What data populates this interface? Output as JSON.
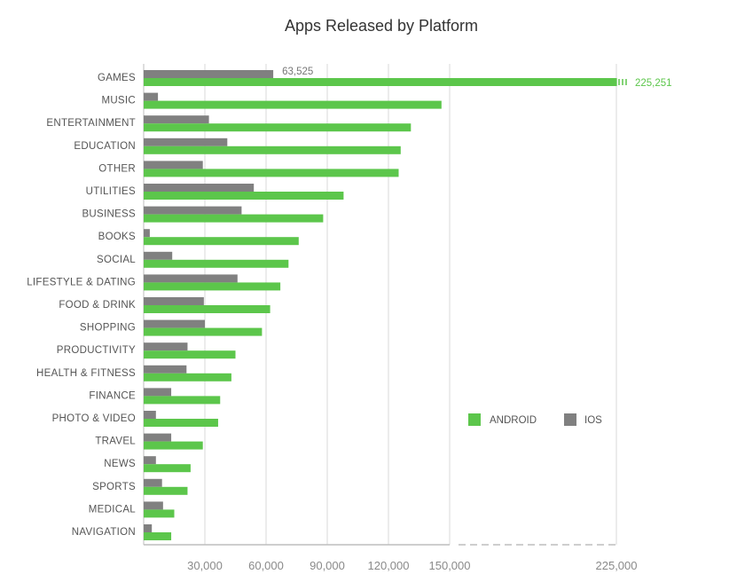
{
  "chart_data": {
    "type": "bar",
    "orientation": "horizontal",
    "title": "Apps Released by Platform",
    "xlabel": "",
    "ylabel": "",
    "categories": [
      "GAMES",
      "MUSIC",
      "ENTERTAINMENT",
      "EDUCATION",
      "OTHER",
      "UTILITIES",
      "BUSINESS",
      "BOOKS",
      "SOCIAL",
      "LIFESTYLE & DATING",
      "FOOD & DRINK",
      "SHOPPING",
      "PRODUCTIVITY",
      "HEALTH & FITNESS",
      "FINANCE",
      "PHOTO & VIDEO",
      "TRAVEL",
      "NEWS",
      "SPORTS",
      "MEDICAL",
      "NAVIGATION"
    ],
    "series": [
      {
        "name": "IOS",
        "color": "#808080",
        "values": [
          63525,
          7000,
          32000,
          41000,
          29000,
          54000,
          48000,
          3000,
          14000,
          46000,
          29500,
          30000,
          21500,
          21000,
          13500,
          6000,
          13500,
          6000,
          9000,
          9500,
          4000
        ]
      },
      {
        "name": "ANDROID",
        "color": "#5cc64b",
        "values": [
          225251,
          146000,
          131000,
          126000,
          125000,
          98000,
          88000,
          76000,
          71000,
          67000,
          62000,
          58000,
          45000,
          43000,
          37500,
          36500,
          29000,
          23000,
          21500,
          15000,
          13500
        ]
      }
    ],
    "xlim": [
      0,
      225000
    ],
    "x_ticks": [
      "30,000",
      "60,000",
      "90,000",
      "120,000",
      "150,000",
      "225,000"
    ],
    "axis_break": "between 150,000 and 225,000",
    "data_labels": {
      "GAMES_IOS": "63,525",
      "GAMES_ANDROID": "225,251"
    },
    "legend": {
      "entries": [
        "ANDROID",
        "IOS"
      ],
      "position": "right"
    },
    "grid": true
  }
}
